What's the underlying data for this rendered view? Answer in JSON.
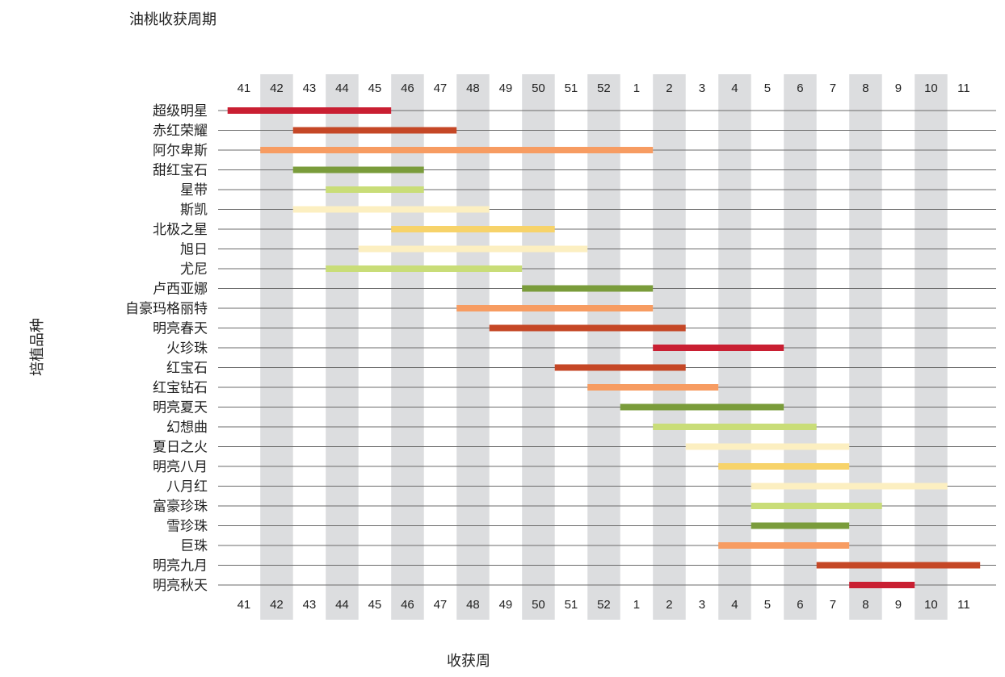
{
  "chart_data": {
    "type": "gantt",
    "title": "油桃收获周期",
    "xlabel": "收获周",
    "ylabel": "培植品种",
    "weeks": [
      "41",
      "42",
      "43",
      "44",
      "45",
      "46",
      "47",
      "48",
      "49",
      "50",
      "51",
      "52",
      "1",
      "2",
      "3",
      "4",
      "5",
      "6",
      "7",
      "8",
      "9",
      "10",
      "11"
    ],
    "grid": "alternating shaded week columns; horizontal line per variety",
    "colors": {
      "red": "#c91f32",
      "orange_red": "#c54726",
      "orange": "#f79c62",
      "green": "#7a9c3b",
      "light_green": "#c9dd78",
      "cream": "#fcefc1",
      "yellow": "#f7d36a",
      "band": "#dcdddf"
    },
    "series": [
      {
        "name": "超级明星",
        "start": "41",
        "end": "45",
        "color": "red"
      },
      {
        "name": "赤红荣耀",
        "start": "43",
        "end": "47",
        "color": "orange_red"
      },
      {
        "name": "阿尔卑斯",
        "start": "42",
        "end": "1",
        "color": "orange"
      },
      {
        "name": "甜红宝石",
        "start": "43",
        "end": "46",
        "color": "green"
      },
      {
        "name": "星带",
        "start": "44",
        "end": "46",
        "color": "light_green"
      },
      {
        "name": "斯凯",
        "start": "43",
        "end": "48",
        "color": "cream"
      },
      {
        "name": "北极之星",
        "start": "46",
        "end": "50",
        "color": "yellow"
      },
      {
        "name": "旭日",
        "start": "45",
        "end": "51",
        "color": "cream"
      },
      {
        "name": "尤尼",
        "start": "44",
        "end": "49",
        "color": "light_green"
      },
      {
        "name": "卢西亚娜",
        "start": "50",
        "end": "1",
        "color": "green"
      },
      {
        "name": "自豪玛格丽特",
        "start": "48",
        "end": "1",
        "color": "orange"
      },
      {
        "name": "明亮春天",
        "start": "49",
        "end": "2",
        "color": "orange_red"
      },
      {
        "name": "火珍珠",
        "start": "2",
        "end": "5",
        "color": "red"
      },
      {
        "name": "红宝石",
        "start": "51",
        "end": "2",
        "color": "orange_red"
      },
      {
        "name": "红宝钻石",
        "start": "52",
        "end": "3",
        "color": "orange"
      },
      {
        "name": "明亮夏天",
        "start": "1",
        "end": "5",
        "color": "green"
      },
      {
        "name": "幻想曲",
        "start": "2",
        "end": "6",
        "color": "light_green"
      },
      {
        "name": "夏日之火",
        "start": "3",
        "end": "7",
        "color": "cream"
      },
      {
        "name": "明亮八月",
        "start": "4",
        "end": "7",
        "color": "yellow"
      },
      {
        "name": "八月红",
        "start": "5",
        "end": "10",
        "color": "cream"
      },
      {
        "name": "富豪珍珠",
        "start": "5",
        "end": "8",
        "color": "light_green"
      },
      {
        "name": "雪珍珠",
        "start": "5",
        "end": "7",
        "color": "green"
      },
      {
        "name": "巨珠",
        "start": "4",
        "end": "7",
        "color": "orange"
      },
      {
        "name": "明亮九月",
        "start": "7",
        "end": "11",
        "color": "orange_red"
      },
      {
        "name": "明亮秋天",
        "start": "8",
        "end": "9",
        "color": "red"
      }
    ]
  }
}
